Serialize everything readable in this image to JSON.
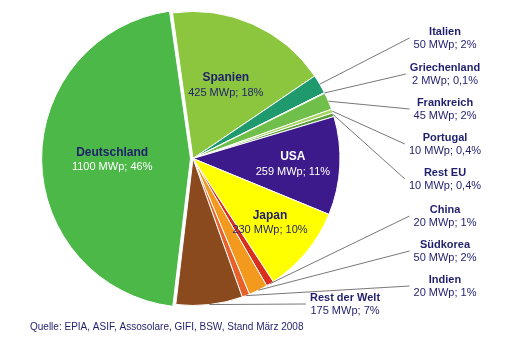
{
  "chart_data": {
    "type": "pie",
    "categories": [
      "Spanien",
      "Italien",
      "Griechenland",
      "Frankreich",
      "Portugal",
      "Rest EU",
      "USA",
      "Japan",
      "China",
      "Südkorea",
      "Indien",
      "Rest der Welt",
      "Deutschland"
    ],
    "values": [
      425,
      50,
      2,
      45,
      10,
      10,
      259,
      230,
      20,
      50,
      20,
      175,
      1100
    ],
    "value_labels": [
      "425 MWp; 18%",
      "50 MWp; 2%",
      "2 MWp; 0,1%",
      "45 MWp; 2%",
      "10 MWp; 0,4%",
      "10 MWp; 0,4%",
      "259 MWp; 11%",
      "230 MWp; 10%",
      "20 MWp; 1%",
      "50 MWp; 2%",
      "20 MWp; 1%",
      "175 MWp; 7%",
      "1100 MWp; 46%"
    ],
    "colors": [
      "#8cc63e",
      "#1f9a6f",
      "#2e7d46",
      "#6fbf4a",
      "#a4d65e",
      "#5a9c3a",
      "#3d1a8c",
      "#ffff00",
      "#d9301e",
      "#f39a1e",
      "#e8612a",
      "#8b4a1e",
      "#4cb848"
    ],
    "data_labels": true,
    "legend": false,
    "annotation": "Quelle: EPIA, ASIF, Assosolare, GIFI, BSW, Stand März 2008"
  }
}
